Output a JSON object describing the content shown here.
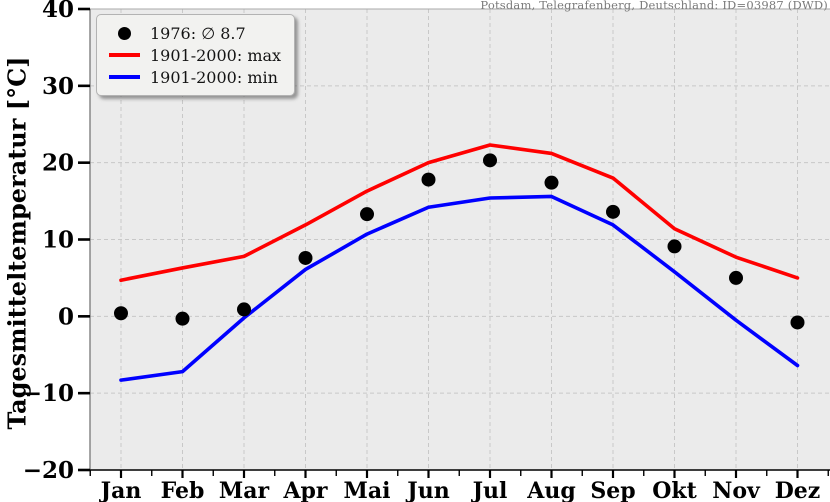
{
  "annotation": "Potsdam, Telegrafenberg, Deutschland: ID=03987 (DWD)",
  "legend": {
    "items": [
      {
        "label": "1976: ∅ 8.7",
        "marker": "dot",
        "color": "#000000"
      },
      {
        "label": "1901-2000: max",
        "marker": "line",
        "color": "#ff0000"
      },
      {
        "label": "1901-2000: min",
        "marker": "line",
        "color": "#0000ff"
      }
    ]
  },
  "chart_data": {
    "type": "line",
    "title": "",
    "annotation": "Potsdam, Telegrafenberg, Deutschland: ID=03987 (DWD)",
    "categories": [
      "Jan",
      "Feb",
      "Mar",
      "Apr",
      "Mai",
      "Jun",
      "Jul",
      "Aug",
      "Sep",
      "Okt",
      "Nov",
      "Dez"
    ],
    "series": [
      {
        "name": "1976: ∅ 8.7",
        "style": "scatter",
        "color": "#000000",
        "values": [
          0.4,
          -0.3,
          0.9,
          7.6,
          13.3,
          17.8,
          20.3,
          17.4,
          13.6,
          9.1,
          5.0,
          -0.8
        ]
      },
      {
        "name": "1901-2000: max",
        "style": "line",
        "color": "#ff0000",
        "values": [
          4.7,
          6.3,
          7.8,
          11.9,
          16.3,
          20.0,
          22.3,
          21.2,
          18.0,
          11.4,
          7.7,
          5.0
        ]
      },
      {
        "name": "1901-2000: min",
        "style": "line",
        "color": "#0000ff",
        "values": [
          -8.3,
          -7.2,
          -0.2,
          6.1,
          10.7,
          14.2,
          15.4,
          15.6,
          11.9,
          5.8,
          -0.5,
          -6.4
        ]
      }
    ],
    "xlabel": "",
    "ylabel": "Tagesmitteltemperatur [°C]",
    "ylim": [
      -20,
      40
    ],
    "yticks": [
      40,
      30,
      20,
      10,
      0,
      -10,
      -20
    ],
    "grid": true,
    "grid_color": "#c8c8c8",
    "plot_background": "#ebebeb",
    "legend_position": "upper left"
  }
}
